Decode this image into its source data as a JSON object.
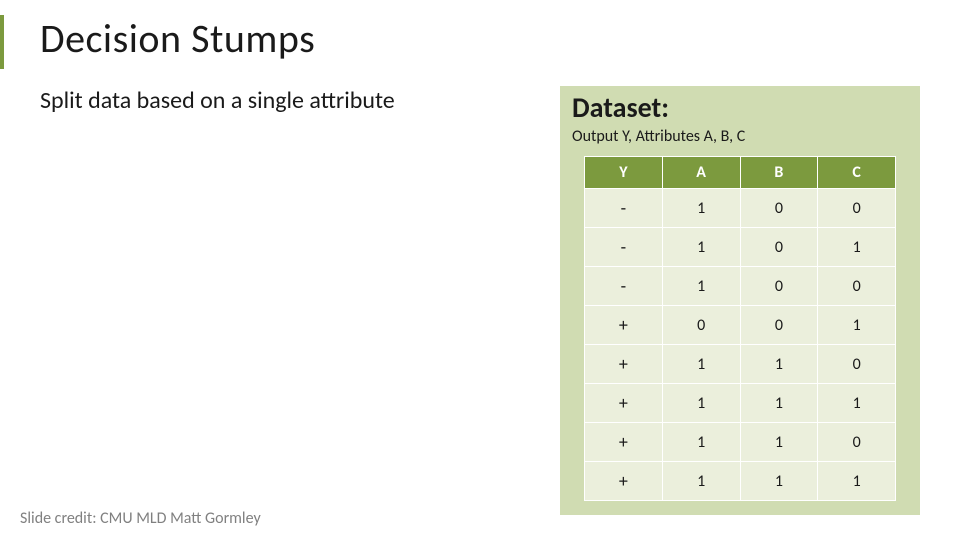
{
  "title": "Decision Stumps",
  "subtitle": "Split data based on a single attribute",
  "dataset": {
    "heading": "Dataset:",
    "subheading": "Output Y, Attributes A, B, C",
    "columns": [
      "Y",
      "A",
      "B",
      "C"
    ],
    "rows": [
      [
        "-",
        "1",
        "0",
        "0"
      ],
      [
        "-",
        "1",
        "0",
        "1"
      ],
      [
        "-",
        "1",
        "0",
        "0"
      ],
      [
        "+",
        "0",
        "0",
        "1"
      ],
      [
        "+",
        "1",
        "1",
        "0"
      ],
      [
        "+",
        "1",
        "1",
        "1"
      ],
      [
        "+",
        "1",
        "1",
        "0"
      ],
      [
        "+",
        "1",
        "1",
        "1"
      ]
    ],
    "colors": {
      "panel_bg": "#d0dcb2",
      "header_bg": "#7c9a3e",
      "header_fg": "#ffffff",
      "cell_bg": "#ebefdc",
      "cell_fg": "#1a1a1a",
      "border": "#ffffff"
    },
    "font": {
      "heading_size": 28,
      "subheading_size": 16,
      "header_size": 16,
      "cell_size": 16
    }
  },
  "credit": "Slide credit: CMU MLD Matt Gormley",
  "accent_color": "#7c9a3e",
  "background_color": "#ffffff"
}
